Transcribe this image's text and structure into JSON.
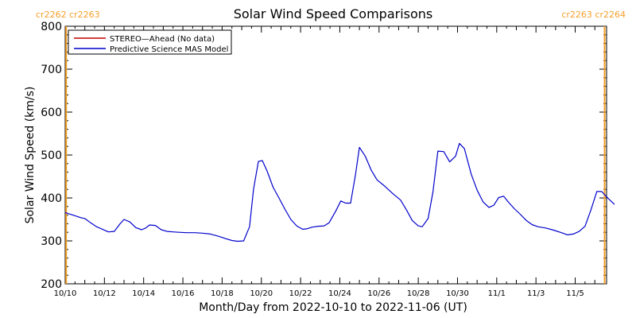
{
  "chart_data": {
    "type": "line",
    "title": "Solar Wind Speed Comparisons",
    "xlabel": "Month/Day from 2022-10-10 to 2022-11-06 (UT)",
    "ylabel": "Solar Wind Speed (km/s)",
    "ylim": [
      200,
      800
    ],
    "xlim_days": [
      0,
      27.6
    ],
    "y_ticks": [
      "200",
      "300",
      "400",
      "500",
      "600",
      "700",
      "800"
    ],
    "x_ticks": [
      {
        "day": 0,
        "label": "10/10"
      },
      {
        "day": 2,
        "label": "10/12"
      },
      {
        "day": 4,
        "label": "10/14"
      },
      {
        "day": 6,
        "label": "10/16"
      },
      {
        "day": 8,
        "label": "10/18"
      },
      {
        "day": 10,
        "label": "10/20"
      },
      {
        "day": 12,
        "label": "10/22"
      },
      {
        "day": 14,
        "label": "10/24"
      },
      {
        "day": 16,
        "label": "10/26"
      },
      {
        "day": 18,
        "label": "10/28"
      },
      {
        "day": 20,
        "label": "10/30"
      },
      {
        "day": 22,
        "label": "11/1"
      },
      {
        "day": 24,
        "label": "11/3"
      },
      {
        "day": 26,
        "label": "11/5"
      }
    ],
    "carrington_markers": [
      {
        "day": 0.05,
        "label": "cr2262 cr2263",
        "align": "left"
      },
      {
        "day": 27.5,
        "label": "cr2263 cr2264",
        "align": "right"
      }
    ],
    "legend_position": "top-left",
    "series": [
      {
        "name": "STEREO—Ahead (No data)",
        "color": "#c00000",
        "points": []
      },
      {
        "name": "Predictive Science MAS Model",
        "color": "#0000cc",
        "points": [
          [
            0.0,
            366
          ],
          [
            0.4,
            360
          ],
          [
            0.8,
            354
          ],
          [
            1.0,
            352
          ],
          [
            1.3,
            342
          ],
          [
            1.6,
            333
          ],
          [
            1.9,
            327
          ],
          [
            2.2,
            321
          ],
          [
            2.5,
            322
          ],
          [
            2.8,
            340
          ],
          [
            3.0,
            350
          ],
          [
            3.3,
            344
          ],
          [
            3.6,
            331
          ],
          [
            3.9,
            326
          ],
          [
            4.1,
            330
          ],
          [
            4.3,
            337
          ],
          [
            4.6,
            336
          ],
          [
            4.9,
            326
          ],
          [
            5.2,
            322
          ],
          [
            5.5,
            321
          ],
          [
            5.8,
            320
          ],
          [
            6.2,
            319
          ],
          [
            6.6,
            319
          ],
          [
            7.0,
            318
          ],
          [
            7.4,
            316
          ],
          [
            7.8,
            311
          ],
          [
            8.2,
            305
          ],
          [
            8.5,
            301
          ],
          [
            8.8,
            299
          ],
          [
            9.1,
            300
          ],
          [
            9.4,
            333
          ],
          [
            9.6,
            420
          ],
          [
            9.85,
            485
          ],
          [
            10.05,
            487
          ],
          [
            10.3,
            462
          ],
          [
            10.6,
            425
          ],
          [
            10.9,
            400
          ],
          [
            11.2,
            374
          ],
          [
            11.5,
            350
          ],
          [
            11.8,
            335
          ],
          [
            12.1,
            327
          ],
          [
            12.3,
            328
          ],
          [
            12.6,
            332
          ],
          [
            12.9,
            334
          ],
          [
            13.2,
            335
          ],
          [
            13.45,
            342
          ],
          [
            13.8,
            370
          ],
          [
            14.05,
            393
          ],
          [
            14.3,
            388
          ],
          [
            14.55,
            388
          ],
          [
            14.8,
            455
          ],
          [
            15.0,
            518
          ],
          [
            15.3,
            497
          ],
          [
            15.6,
            465
          ],
          [
            15.9,
            442
          ],
          [
            16.3,
            427
          ],
          [
            16.7,
            410
          ],
          [
            17.1,
            395
          ],
          [
            17.4,
            372
          ],
          [
            17.7,
            347
          ],
          [
            18.0,
            335
          ],
          [
            18.2,
            333
          ],
          [
            18.5,
            352
          ],
          [
            18.75,
            414
          ],
          [
            19.0,
            509
          ],
          [
            19.3,
            508
          ],
          [
            19.6,
            484
          ],
          [
            19.9,
            497
          ],
          [
            20.1,
            527
          ],
          [
            20.35,
            515
          ],
          [
            20.7,
            455
          ],
          [
            21.0,
            418
          ],
          [
            21.3,
            391
          ],
          [
            21.6,
            378
          ],
          [
            21.85,
            383
          ],
          [
            22.1,
            401
          ],
          [
            22.35,
            404
          ],
          [
            22.6,
            390
          ],
          [
            22.9,
            375
          ],
          [
            23.2,
            362
          ],
          [
            23.5,
            348
          ],
          [
            23.8,
            338
          ],
          [
            24.1,
            333
          ],
          [
            24.5,
            330
          ],
          [
            24.9,
            325
          ],
          [
            25.3,
            319
          ],
          [
            25.6,
            314
          ],
          [
            25.9,
            316
          ],
          [
            26.2,
            322
          ],
          [
            26.5,
            334
          ],
          [
            26.8,
            372
          ],
          [
            27.1,
            415
          ],
          [
            27.35,
            415
          ],
          [
            27.7,
            398
          ],
          [
            28.0,
            385
          ]
        ]
      }
    ]
  }
}
